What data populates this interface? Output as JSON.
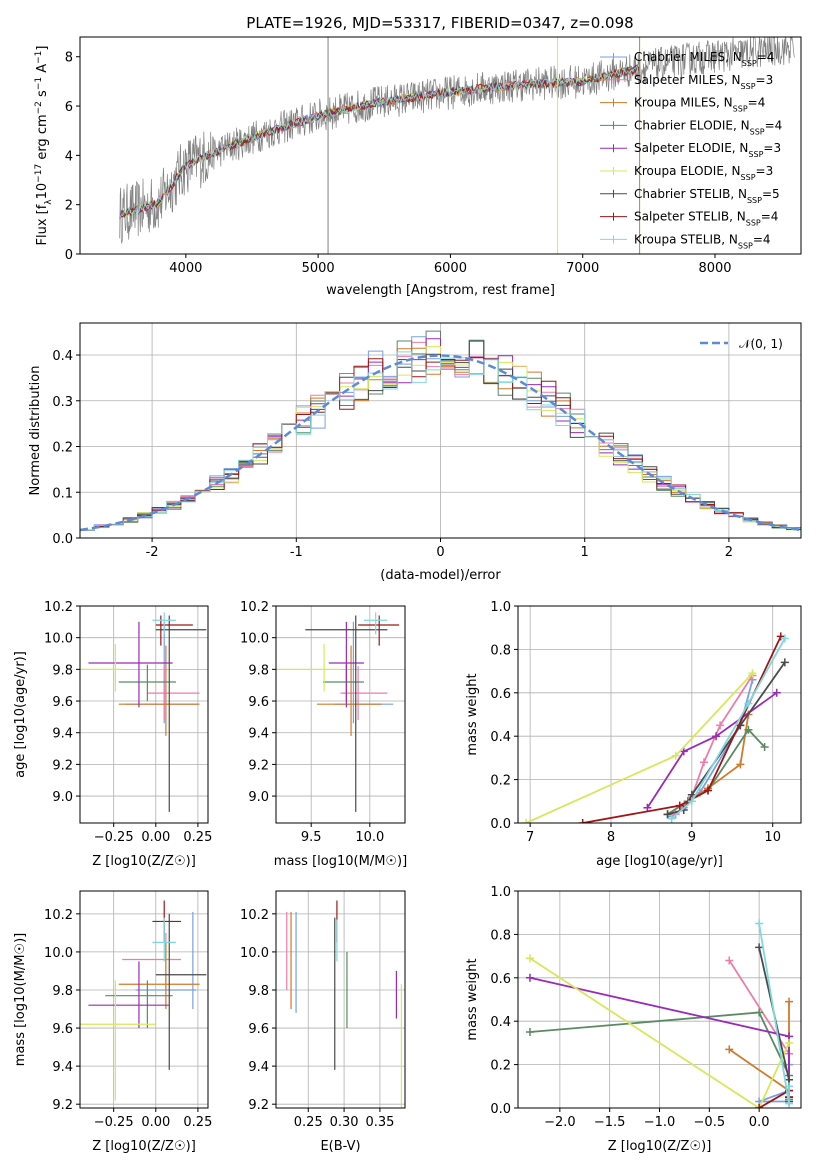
{
  "figure_title": "PLATE=1926, MJD=53317, FIBERID=0347, z=0.098",
  "model_names": [
    "Chabrier MILES",
    "Salpeter MILES",
    "Kroupa MILES",
    "Chabrier ELODIE",
    "Salpeter ELODIE",
    "Kroupa ELODIE",
    "Chabrier STELIB",
    "Salpeter STELIB",
    "Kroupa STELIB"
  ],
  "model_nssp": [
    4,
    3,
    4,
    4,
    3,
    3,
    5,
    4,
    4
  ],
  "model_colors": [
    "#7b9fe0",
    "#f07ba8",
    "#d07a2a",
    "#5a8a62",
    "#9a2bb8",
    "#d6e85a",
    "#4a4a4a",
    "#a01616",
    "#7fd8e0"
  ],
  "chart_data": [
    {
      "type": "line",
      "id": "spectrum",
      "title": "PLATE=1926, MJD=53317, FIBERID=0347, z=0.098",
      "xlabel": "wavelength [Angstrom, rest frame]",
      "ylabel": "Flux [f_λ 10^-17 erg cm^-2 s^-1 A^-1]",
      "xlim": [
        3200,
        8650
      ],
      "ylim": [
        0,
        8.8
      ],
      "xticks": [
        4000,
        5000,
        6000,
        7000,
        8000
      ],
      "yticks": [
        0,
        2,
        4,
        6,
        8
      ],
      "legend_position": "upper-right",
      "data_color": "#808080",
      "model_extent_max": 7430,
      "vertical_spikes": [
        {
          "x": 5075,
          "y": 8.8,
          "color": "#808080"
        },
        {
          "x": 6810,
          "y": 8.8,
          "color": "#d6e85a"
        },
        {
          "x": 7430,
          "y": 8.8,
          "color": "#d07a2a"
        }
      ],
      "continuum": [
        [
          3500,
          1.6
        ],
        [
          3700,
          1.9
        ],
        [
          3800,
          2.1
        ],
        [
          4000,
          3.6
        ],
        [
          4300,
          4.3
        ],
        [
          4600,
          4.9
        ],
        [
          5000,
          5.6
        ],
        [
          5400,
          6.1
        ],
        [
          5800,
          6.4
        ],
        [
          6200,
          6.7
        ],
        [
          6600,
          6.9
        ],
        [
          7000,
          7.0
        ],
        [
          7400,
          7.5
        ],
        [
          7800,
          7.9
        ],
        [
          8300,
          8.2
        ],
        [
          8600,
          8.4
        ]
      ]
    },
    {
      "type": "line",
      "id": "residuals",
      "xlabel": "(data-model)/error",
      "ylabel": "Normed distribution",
      "xlim": [
        -2.5,
        2.5
      ],
      "ylim": [
        0,
        0.47
      ],
      "xticks": [
        -2,
        -1,
        0,
        1,
        2
      ],
      "yticks": [
        0.0,
        0.1,
        0.2,
        0.3,
        0.4
      ],
      "grid": true,
      "bin_width": 0.1,
      "legend_entries": [
        "𝒩(0, 1)"
      ],
      "legend_position": "upper-right",
      "gaussian_color": "#5b8bd6"
    },
    {
      "type": "scatter",
      "id": "age-vs-Z",
      "xlabel": "Z [log10(Z/Z☉)]",
      "ylabel": "age  [log10(age/yr)]",
      "xlim": [
        -0.45,
        0.31
      ],
      "ylim": [
        8.83,
        10.2
      ],
      "xticks": [
        -0.25,
        0.0,
        0.25
      ],
      "xticklabels": [
        "−0.25",
        "0.00",
        "0.25"
      ],
      "yticks": [
        9.0,
        9.2,
        9.4,
        9.6,
        9.8,
        10.0,
        10.2
      ],
      "yticklabels": [
        "9.0",
        "9.2",
        "9.4",
        "9.6",
        "9.8",
        "10.0",
        "10.2"
      ],
      "grid": true,
      "points": [
        {
          "m": 0,
          "x": 0.05,
          "y": 9.58,
          "xe": [
            -0.18,
            0.25
          ],
          "ye": [
            9.46,
            10.1
          ]
        },
        {
          "m": 1,
          "x": 0.05,
          "y": 9.65,
          "xe": [
            -0.05,
            0.26
          ],
          "ye": [
            9.48,
            9.82
          ]
        },
        {
          "m": 2,
          "x": 0.06,
          "y": 9.58,
          "xe": [
            -0.22,
            0.26
          ],
          "ye": [
            9.38,
            9.95
          ]
        },
        {
          "m": 3,
          "x": -0.05,
          "y": 9.72,
          "xe": [
            -0.22,
            0.12
          ],
          "ye": [
            9.6,
            9.83
          ]
        },
        {
          "m": 4,
          "x": -0.1,
          "y": 9.84,
          "xe": [
            -0.4,
            0.1
          ],
          "ye": [
            9.56,
            10.1
          ]
        },
        {
          "m": 5,
          "x": -0.24,
          "y": 9.8,
          "xe": [
            -0.47,
            -0.2
          ],
          "ye": [
            9.66,
            9.96
          ]
        },
        {
          "m": 6,
          "x": 0.08,
          "y": 10.05,
          "xe": [
            0.0,
            0.3
          ],
          "ye": [
            8.9,
            10.14
          ]
        },
        {
          "m": 7,
          "x": 0.03,
          "y": 10.08,
          "xe": [
            0.0,
            0.22
          ],
          "ye": [
            9.95,
            10.14
          ]
        },
        {
          "m": 8,
          "x": 0.05,
          "y": 10.11,
          "xe": [
            -0.02,
            0.12
          ],
          "ye": [
            10.02,
            10.16
          ]
        }
      ]
    },
    {
      "type": "scatter",
      "id": "age-vs-mass",
      "xlabel": "mass [log10(M/M☉)]",
      "ylabel": "",
      "xlim": [
        9.2,
        10.3
      ],
      "ylim": [
        8.83,
        10.2
      ],
      "xticks": [
        9.5,
        10.0
      ],
      "xticklabels": [
        "9.5",
        "10.0"
      ],
      "yticks": [
        9.0,
        9.2,
        9.4,
        9.6,
        9.8,
        10.0,
        10.2
      ],
      "yticklabels": [
        "9.0",
        "9.2",
        "9.4",
        "9.6",
        "9.8",
        "10.0",
        "10.2"
      ],
      "grid": true,
      "points": [
        {
          "m": 0,
          "x": 9.86,
          "y": 9.58,
          "xe": [
            9.7,
            10.2
          ],
          "ye": [
            9.46,
            10.1
          ]
        },
        {
          "m": 1,
          "x": 9.9,
          "y": 9.65,
          "xe": [
            9.75,
            10.15
          ],
          "ye": [
            9.48,
            9.82
          ]
        },
        {
          "m": 2,
          "x": 9.84,
          "y": 9.58,
          "xe": [
            9.55,
            10.1
          ],
          "ye": [
            9.38,
            9.95
          ]
        },
        {
          "m": 3,
          "x": 9.8,
          "y": 9.72,
          "xe": [
            9.6,
            9.95
          ],
          "ye": [
            9.6,
            9.83
          ]
        },
        {
          "m": 4,
          "x": 9.8,
          "y": 9.84,
          "xe": [
            9.65,
            9.95
          ],
          "ye": [
            9.56,
            10.1
          ]
        },
        {
          "m": 5,
          "x": 9.61,
          "y": 9.8,
          "xe": [
            9.2,
            9.75
          ],
          "ye": [
            9.66,
            9.96
          ]
        },
        {
          "m": 6,
          "x": 9.88,
          "y": 10.05,
          "xe": [
            9.45,
            10.15
          ],
          "ye": [
            8.9,
            10.14
          ]
        },
        {
          "m": 7,
          "x": 10.08,
          "y": 10.08,
          "xe": [
            9.9,
            10.25
          ],
          "ye": [
            9.95,
            10.14
          ]
        },
        {
          "m": 8,
          "x": 10.05,
          "y": 10.11,
          "xe": [
            9.95,
            10.15
          ],
          "ye": [
            10.02,
            10.16
          ]
        }
      ]
    },
    {
      "type": "line",
      "id": "mass-weight-vs-age",
      "xlabel": "age  [log10(age/yr)]",
      "ylabel": "mass weight",
      "xlim": [
        6.85,
        10.35
      ],
      "ylim": [
        0,
        1.0
      ],
      "xticks": [
        7,
        8,
        9,
        10
      ],
      "yticks": [
        0.0,
        0.2,
        0.4,
        0.6,
        0.8,
        1.0
      ],
      "grid": true,
      "series": [
        {
          "m": 0,
          "points": [
            [
              8.75,
              0.03
            ],
            [
              8.9,
              0.07
            ],
            [
              9.1,
              0.14
            ],
            [
              9.6,
              0.45
            ],
            [
              9.75,
              0.66
            ]
          ]
        },
        {
          "m": 1,
          "points": [
            [
              8.8,
              0.04
            ],
            [
              9.0,
              0.12
            ],
            [
              9.15,
              0.28
            ],
            [
              9.35,
              0.45
            ],
            [
              9.75,
              0.68
            ]
          ]
        },
        {
          "m": 2,
          "points": [
            [
              8.7,
              0.04
            ],
            [
              8.95,
              0.1
            ],
            [
              9.2,
              0.16
            ],
            [
              9.6,
              0.27
            ],
            [
              9.7,
              0.5
            ]
          ]
        },
        {
          "m": 3,
          "points": [
            [
              8.7,
              0.04
            ],
            [
              8.95,
              0.1
            ],
            [
              9.2,
              0.15
            ],
            [
              9.7,
              0.43
            ],
            [
              9.9,
              0.35
            ]
          ]
        },
        {
          "m": 4,
          "points": [
            [
              8.45,
              0.07
            ],
            [
              8.9,
              0.33
            ],
            [
              9.3,
              0.4
            ],
            [
              10.05,
              0.6
            ]
          ]
        },
        {
          "m": 5,
          "points": [
            [
              6.95,
              0.0
            ],
            [
              8.8,
              0.31
            ],
            [
              9.75,
              0.69
            ]
          ]
        },
        {
          "m": 6,
          "points": [
            [
              8.7,
              0.04
            ],
            [
              8.9,
              0.06
            ],
            [
              9.0,
              0.13
            ],
            [
              9.6,
              0.45
            ],
            [
              10.15,
              0.74
            ]
          ]
        },
        {
          "m": 7,
          "points": [
            [
              7.65,
              0.0
            ],
            [
              8.85,
              0.08
            ],
            [
              9.2,
              0.15
            ],
            [
              10.1,
              0.86
            ]
          ]
        },
        {
          "m": 8,
          "points": [
            [
              8.75,
              0.02
            ],
            [
              9.0,
              0.1
            ],
            [
              9.7,
              0.55
            ],
            [
              10.15,
              0.85
            ]
          ]
        }
      ]
    },
    {
      "type": "scatter",
      "id": "mass-vs-Z",
      "xlabel": "Z [log10(Z/Z☉)]",
      "ylabel": "mass [log10(M/M☉)]",
      "xlim": [
        -0.45,
        0.31
      ],
      "ylim": [
        9.18,
        10.32
      ],
      "xticks": [
        -0.25,
        0.0,
        0.25
      ],
      "xticklabels": [
        "−0.25",
        "0.00",
        "0.25"
      ],
      "yticks": [
        9.2,
        9.4,
        9.6,
        9.8,
        10.0,
        10.2
      ],
      "yticklabels": [
        "9.2",
        "9.4",
        "9.6",
        "9.8",
        "10.0",
        "10.2"
      ],
      "grid": true,
      "points": [
        {
          "m": 0,
          "x": 0.22,
          "y": 9.8,
          "xe": [
            -0.12,
            0.24
          ],
          "ye": [
            9.7,
            10.21
          ]
        },
        {
          "m": 1,
          "x": 0.06,
          "y": 9.96,
          "xe": [
            -0.2,
            0.15
          ],
          "ye": [
            9.8,
            10.1
          ]
        },
        {
          "m": 2,
          "x": 0.06,
          "y": 9.83,
          "xe": [
            -0.22,
            0.26
          ],
          "ye": [
            9.7,
            10.05
          ]
        },
        {
          "m": 3,
          "x": -0.05,
          "y": 9.77,
          "xe": [
            -0.3,
            0.1
          ],
          "ye": [
            9.6,
            9.85
          ]
        },
        {
          "m": 4,
          "x": -0.1,
          "y": 9.72,
          "xe": [
            -0.4,
            0.08
          ],
          "ye": [
            9.6,
            9.95
          ]
        },
        {
          "m": 5,
          "x": -0.24,
          "y": 9.62,
          "xe": [
            -0.47,
            0.0
          ],
          "ye": [
            9.22,
            9.85
          ]
        },
        {
          "m": 6,
          "x": 0.08,
          "y": 9.88,
          "xe": [
            0.0,
            0.3
          ],
          "ye": [
            9.38,
            10.2
          ]
        },
        {
          "m": 7,
          "x": 0.05,
          "y": 10.16,
          "xe": [
            -0.02,
            0.15
          ],
          "ye": [
            10.05,
            10.27
          ]
        },
        {
          "m": 8,
          "x": 0.05,
          "y": 10.05,
          "xe": [
            -0.02,
            0.12
          ],
          "ye": [
            9.95,
            10.18
          ]
        }
      ]
    },
    {
      "type": "scatter",
      "id": "mass-vs-EBV",
      "xlabel": "E(B-V)",
      "ylabel": "",
      "xlim": [
        0.205,
        0.385
      ],
      "ylim": [
        9.18,
        10.32
      ],
      "xticks": [
        0.25,
        0.3,
        0.35
      ],
      "xticklabels": [
        "0.25",
        "0.30",
        "0.35"
      ],
      "yticks": [
        9.2,
        9.4,
        9.6,
        9.8,
        10.0,
        10.2
      ],
      "yticklabels": [
        "9.2",
        "9.4",
        "9.6",
        "9.8",
        "10.0",
        "10.2"
      ],
      "grid": true,
      "points": [
        {
          "m": 0,
          "x": 0.233,
          "y": 9.8,
          "ye": [
            9.68,
            10.21
          ]
        },
        {
          "m": 1,
          "x": 0.22,
          "y": 9.96,
          "ye": [
            9.8,
            10.21
          ]
        },
        {
          "m": 2,
          "x": 0.226,
          "y": 9.83,
          "ye": [
            9.7,
            10.21
          ]
        },
        {
          "m": 3,
          "x": 0.304,
          "y": 9.77,
          "ye": [
            9.6,
            10.0
          ]
        },
        {
          "m": 4,
          "x": 0.373,
          "y": 9.72,
          "ye": [
            9.65,
            9.9
          ]
        },
        {
          "m": 5,
          "x": 0.38,
          "y": 9.62,
          "ye": [
            9.18,
            9.83
          ]
        },
        {
          "m": 6,
          "x": 0.287,
          "y": 9.88,
          "ye": [
            9.38,
            10.18
          ]
        },
        {
          "m": 7,
          "x": 0.29,
          "y": 10.16,
          "ye": [
            10.05,
            10.27
          ]
        },
        {
          "m": 8,
          "x": 0.29,
          "y": 10.05,
          "ye": [
            9.95,
            10.17
          ]
        }
      ]
    },
    {
      "type": "line",
      "id": "mass-weight-vs-Z",
      "xlabel": "Z [log10(Z/Z☉)]",
      "ylabel": "mass weight",
      "xlim": [
        -2.42,
        0.42
      ],
      "ylim": [
        0,
        1.0
      ],
      "xticks": [
        -2.0,
        -1.5,
        -1.0,
        -0.5,
        0.0
      ],
      "xticklabels": [
        "−2.0",
        "−1.5",
        "−1.0",
        "−0.5",
        "0.0"
      ],
      "yticks": [
        0.0,
        0.2,
        0.4,
        0.6,
        0.8,
        1.0
      ],
      "grid": true,
      "series": [
        {
          "m": 0,
          "points": [
            [
              0.3,
              0.03
            ],
            [
              0.0,
              0.03
            ],
            [
              0.3,
              0.08
            ],
            [
              0.3,
              0.2
            ]
          ]
        },
        {
          "m": 1,
          "points": [
            [
              -0.3,
              0.68
            ],
            [
              0.3,
              0.25
            ],
            [
              0.3,
              0.05
            ]
          ]
        },
        {
          "m": 2,
          "points": [
            [
              -0.3,
              0.27
            ],
            [
              0.3,
              0.08
            ],
            [
              0.3,
              0.49
            ],
            [
              0.3,
              0.1
            ]
          ]
        },
        {
          "m": 3,
          "points": [
            [
              -2.3,
              0.35
            ],
            [
              0.0,
              0.44
            ],
            [
              0.3,
              0.15
            ],
            [
              0.3,
              0.04
            ]
          ]
        },
        {
          "m": 4,
          "points": [
            [
              -2.3,
              0.6
            ],
            [
              0.3,
              0.33
            ],
            [
              0.3,
              0.05
            ]
          ]
        },
        {
          "m": 5,
          "points": [
            [
              -2.3,
              0.69
            ],
            [
              0.0,
              0.0
            ],
            [
              0.3,
              0.3
            ]
          ]
        },
        {
          "m": 6,
          "points": [
            [
              0.0,
              0.74
            ],
            [
              0.3,
              0.13
            ],
            [
              0.3,
              0.05
            ],
            [
              0.3,
              0.03
            ]
          ]
        },
        {
          "m": 7,
          "points": [
            [
              0.0,
              0.0
            ],
            [
              0.3,
              0.08
            ],
            [
              0.3,
              0.05
            ]
          ]
        },
        {
          "m": 8,
          "points": [
            [
              0.0,
              0.85
            ],
            [
              0.3,
              0.02
            ],
            [
              0.3,
              0.1
            ]
          ]
        }
      ]
    }
  ]
}
